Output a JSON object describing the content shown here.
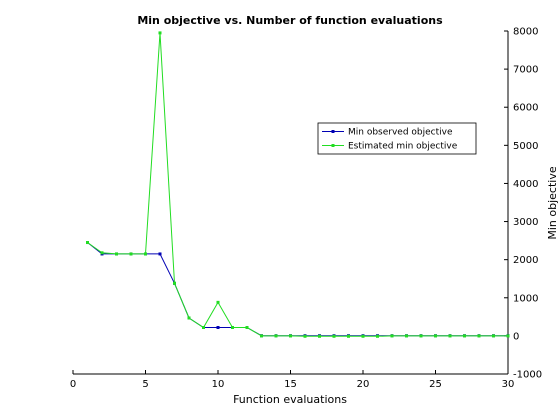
{
  "chart_data": {
    "type": "line",
    "title": "Min objective vs. Number of function evaluations",
    "xlabel": "Function evaluations",
    "ylabel": "Min objective",
    "xlim": [
      0,
      30
    ],
    "ylim": [
      -1000,
      8000
    ],
    "x_ticks": [
      0,
      5,
      10,
      15,
      20,
      25,
      30
    ],
    "y_ticks": [
      -1000,
      0,
      1000,
      2000,
      3000,
      4000,
      5000,
      6000,
      7000,
      8000
    ],
    "y_axis_side": "right",
    "grid": false,
    "legend_position": "right-center",
    "x": [
      1,
      2,
      3,
      4,
      5,
      6,
      7,
      8,
      9,
      10,
      11,
      12,
      13,
      14,
      15,
      16,
      17,
      18,
      19,
      20,
      21,
      22,
      23,
      24,
      25,
      26,
      27,
      28,
      29,
      30
    ],
    "series": [
      {
        "name": "Min observed objective",
        "color": "#0000b4",
        "marker": "square",
        "values": [
          2450,
          2150,
          2150,
          2150,
          2150,
          2150,
          1380,
          470,
          220,
          220,
          220,
          220,
          5,
          5,
          5,
          5,
          5,
          5,
          5,
          5,
          5,
          5,
          5,
          5,
          5,
          5,
          5,
          5,
          5,
          5
        ]
      },
      {
        "name": "Estimated min objective",
        "color": "#22dd22",
        "marker": "square",
        "values": [
          2450,
          2180,
          2150,
          2150,
          2150,
          7950,
          1380,
          470,
          220,
          880,
          220,
          220,
          0,
          0,
          0,
          -10,
          -10,
          -10,
          -10,
          -10,
          -10,
          0,
          0,
          0,
          0,
          0,
          0,
          0,
          0,
          0
        ]
      }
    ]
  }
}
